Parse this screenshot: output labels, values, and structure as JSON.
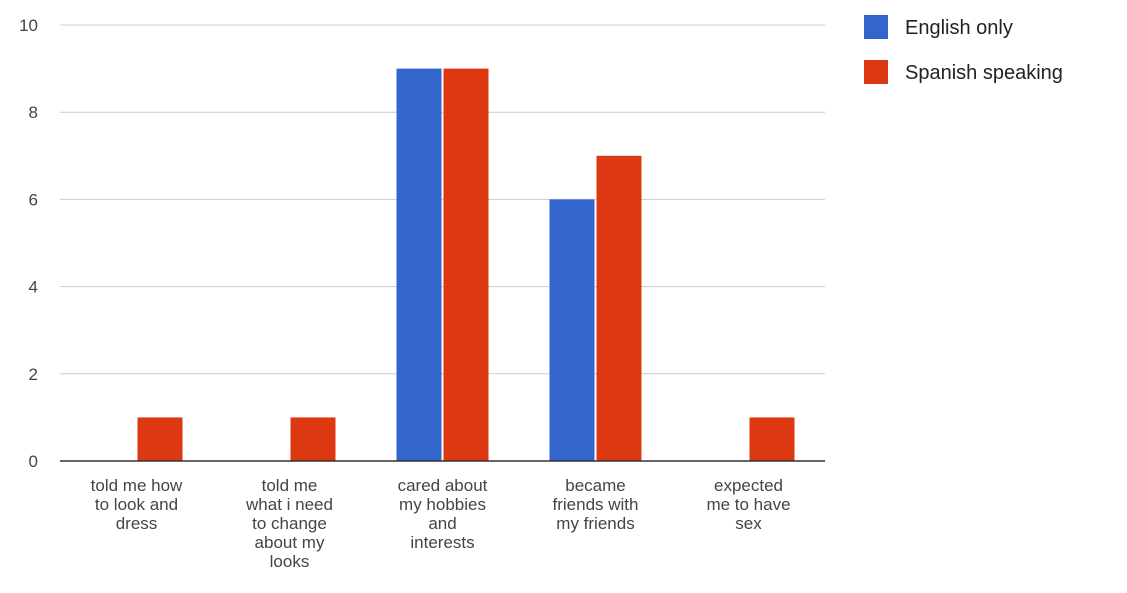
{
  "chart_data": {
    "type": "bar",
    "title": "",
    "xlabel": "",
    "ylabel": "",
    "ylim": [
      0,
      10
    ],
    "yticks": [
      0,
      2,
      4,
      6,
      8,
      10
    ],
    "grid": true,
    "legend_position": "top-right",
    "categories": [
      [
        "told me how",
        "to look and",
        "dress"
      ],
      [
        "told me",
        "what i need",
        "to change",
        "about my",
        "looks"
      ],
      [
        "cared about",
        "my hobbies",
        "and",
        "interests"
      ],
      [
        "became",
        "friends with",
        "my friends"
      ],
      [
        "expected",
        "me to have",
        "sex"
      ]
    ],
    "series": [
      {
        "name": "English only",
        "color": "#3366cc",
        "values": [
          0,
          0,
          9,
          6,
          0
        ]
      },
      {
        "name": "Spanish speaking",
        "color": "#dc3912",
        "values": [
          1,
          1,
          9,
          7,
          1
        ]
      }
    ]
  }
}
